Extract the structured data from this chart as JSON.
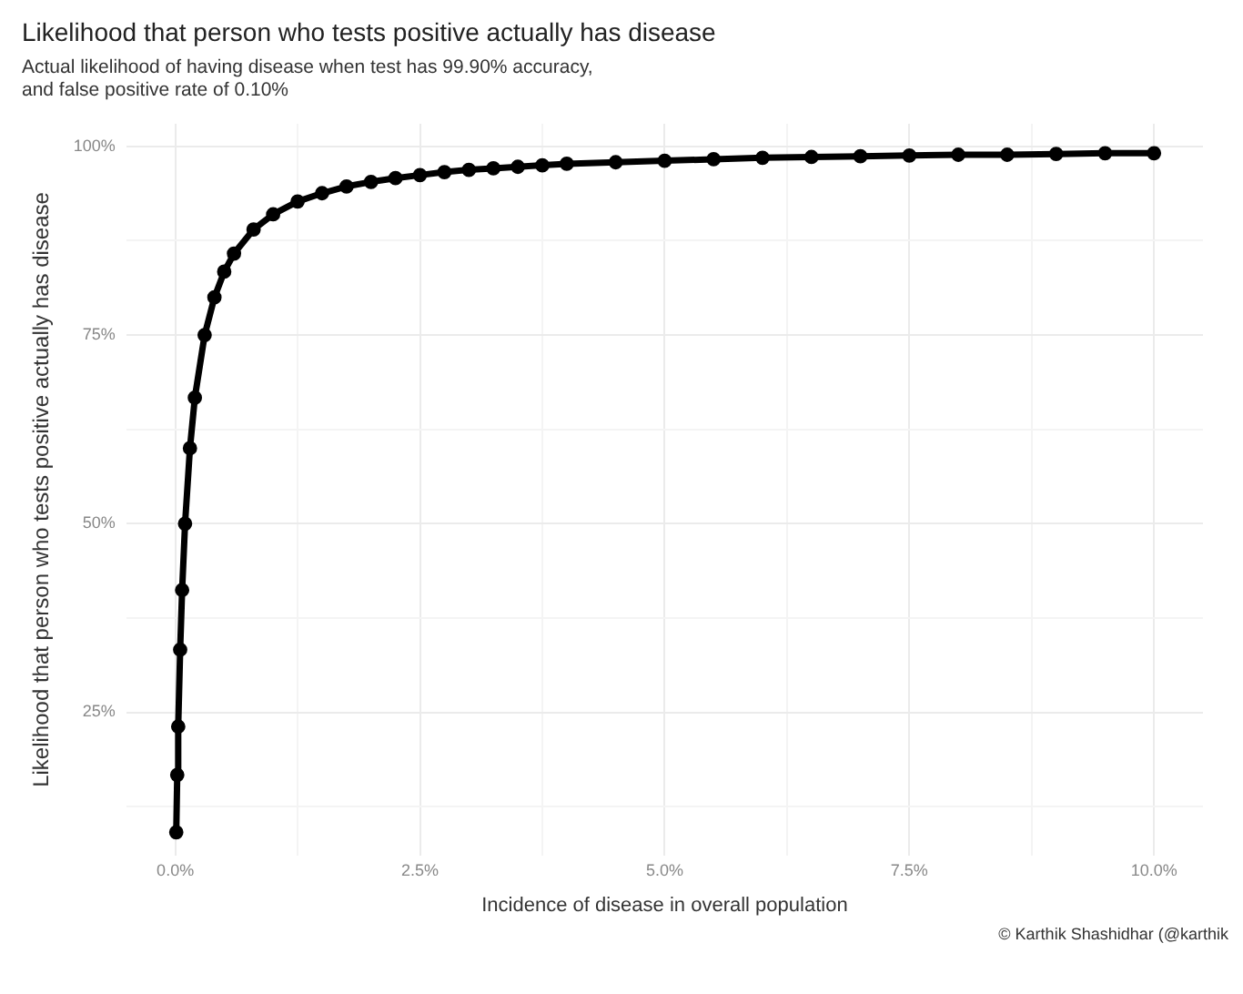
{
  "chart_data": {
    "type": "line",
    "title": "Likelihood that person who tests positive actually has disease",
    "subtitle": "Actual likelihood of having disease when test has 99.90% accuracy,\nand false positive rate of 0.10%",
    "xlabel": "Incidence of disease in overall population",
    "ylabel": "Likelihood that person who tests positive actually has disease",
    "x": [
      0.01,
      0.02,
      0.03,
      0.05,
      0.07,
      0.1,
      0.15,
      0.2,
      0.3,
      0.4,
      0.5,
      0.6,
      0.8,
      1.0,
      1.25,
      1.5,
      1.75,
      2.0,
      2.25,
      2.5,
      2.75,
      3.0,
      3.25,
      3.5,
      3.75,
      4.0,
      4.5,
      5.0,
      5.5,
      6.0,
      6.5,
      7.0,
      7.5,
      8.0,
      8.5,
      9.0,
      9.5,
      10.0
    ],
    "series": [
      {
        "color": "#000000",
        "values": [
          9.1,
          16.7,
          23.1,
          33.3,
          41.2,
          50.0,
          60.0,
          66.7,
          75.0,
          80.0,
          83.4,
          85.8,
          89.0,
          91.0,
          92.7,
          93.8,
          94.7,
          95.3,
          95.8,
          96.2,
          96.6,
          96.9,
          97.1,
          97.3,
          97.5,
          97.7,
          97.9,
          98.1,
          98.3,
          98.5,
          98.6,
          98.7,
          98.8,
          98.9,
          98.9,
          99.0,
          99.1,
          99.1
        ]
      }
    ],
    "xlim": [
      -0.5,
      10.5
    ],
    "ylim": [
      6,
      103
    ],
    "xticks": [
      {
        "value": 0,
        "label": "0.0%"
      },
      {
        "value": 1.25,
        "label": null
      },
      {
        "value": 2.5,
        "label": "2.5%"
      },
      {
        "value": 3.75,
        "label": null
      },
      {
        "value": 5,
        "label": "5.0%"
      },
      {
        "value": 6.25,
        "label": null
      },
      {
        "value": 7.5,
        "label": "7.5%"
      },
      {
        "value": 8.75,
        "label": null
      },
      {
        "value": 10,
        "label": "10.0%"
      }
    ],
    "yticks": [
      {
        "value": 12.5,
        "label": null
      },
      {
        "value": 25,
        "label": "25%"
      },
      {
        "value": 37.5,
        "label": null
      },
      {
        "value": 50,
        "label": "50%"
      },
      {
        "value": 62.5,
        "label": null
      },
      {
        "value": 75,
        "label": "75%"
      },
      {
        "value": 87.5,
        "label": null
      },
      {
        "value": 100,
        "label": "100%"
      }
    ],
    "grid": true,
    "marker": "circle",
    "line_style": "solid",
    "legend": false,
    "annotations": [
      "© Karthik Shashidhar (@karthik"
    ]
  }
}
